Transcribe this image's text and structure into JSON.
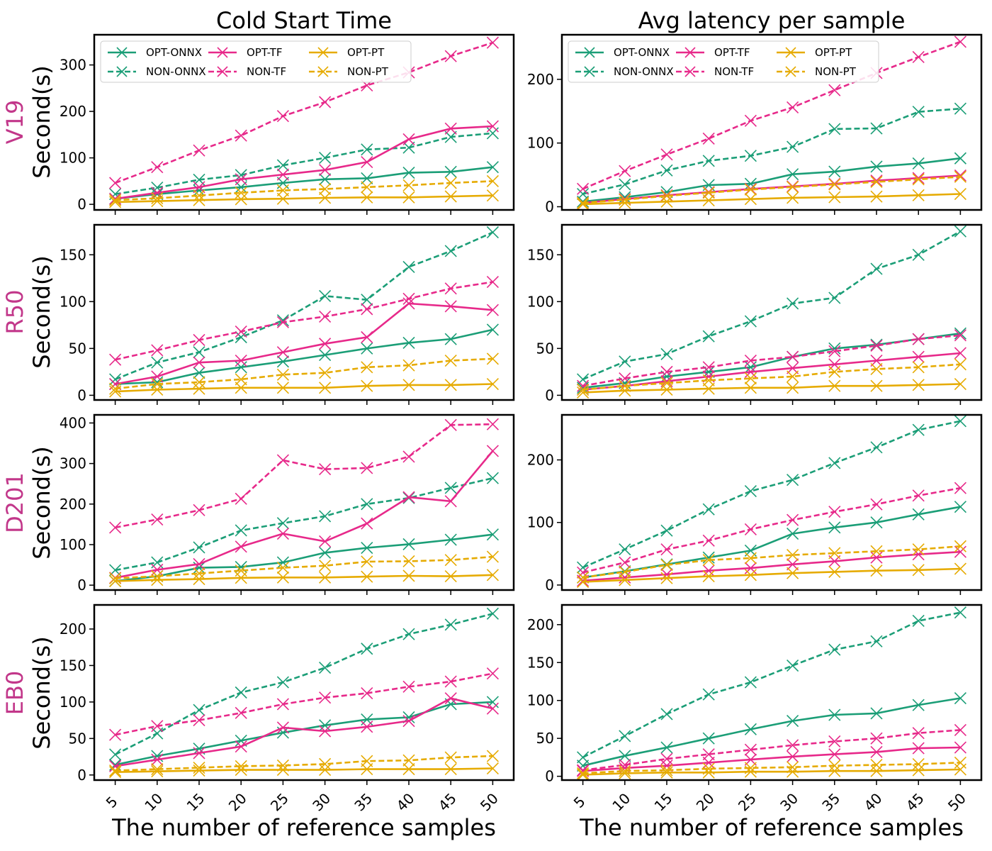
{
  "figure": {
    "col_titles": [
      "Cold Start Time",
      "Avg latency per sample"
    ],
    "row_labels": [
      "V19",
      "R50",
      "D201",
      "EB0"
    ],
    "ylabel": "Second(s)",
    "xlabel": "The number of reference samples",
    "series_styles": [
      {
        "name": "OPT-ONNX",
        "color": "#1b9e77",
        "dashed": false
      },
      {
        "name": "NON-ONNX",
        "color": "#1b9e77",
        "dashed": true
      },
      {
        "name": "OPT-TF",
        "color": "#e7298a",
        "dashed": false
      },
      {
        "name": "NON-TF",
        "color": "#e7298a",
        "dashed": true
      },
      {
        "name": "OPT-PT",
        "color": "#e6ab02",
        "dashed": false
      },
      {
        "name": "NON-PT",
        "color": "#e6ab02",
        "dashed": true
      }
    ]
  },
  "chart_data": [
    {
      "type": "line",
      "title": "Cold Start Time",
      "row": "V19",
      "xlabel": "The number of reference samples",
      "ylabel": "Second(s)",
      "x": [
        5,
        10,
        15,
        20,
        25,
        30,
        35,
        40,
        45,
        50
      ],
      "ylim": [
        -12,
        365
      ],
      "yticks": [
        0,
        100,
        200,
        300
      ],
      "legend": "top-left",
      "series": [
        {
          "name": "OPT-ONNX",
          "values": [
            12,
            22,
            30,
            37,
            46,
            54,
            56,
            68,
            70,
            80
          ]
        },
        {
          "name": "NON-ONNX",
          "values": [
            22,
            36,
            53,
            63,
            84,
            100,
            118,
            122,
            145,
            153
          ]
        },
        {
          "name": "OPT-TF",
          "values": [
            12,
            25,
            37,
            54,
            64,
            74,
            91,
            140,
            163,
            168
          ]
        },
        {
          "name": "NON-TF",
          "values": [
            46,
            80,
            116,
            148,
            190,
            220,
            256,
            284,
            319,
            348
          ]
        },
        {
          "name": "OPT-PT",
          "values": [
            5,
            7,
            9,
            11,
            12,
            14,
            15,
            15,
            17,
            19
          ]
        },
        {
          "name": "NON-PT",
          "values": [
            9,
            13,
            19,
            25,
            30,
            33,
            37,
            41,
            46,
            50
          ]
        }
      ]
    },
    {
      "type": "line",
      "title": "Avg latency per sample",
      "row": "V19",
      "xlabel": "The number of reference samples",
      "ylabel": "",
      "x": [
        5,
        10,
        15,
        20,
        25,
        30,
        35,
        40,
        45,
        50
      ],
      "ylim": [
        -5,
        270
      ],
      "yticks": [
        0,
        100,
        200
      ],
      "legend": "top-left",
      "series": [
        {
          "name": "OPT-ONNX",
          "values": [
            8,
            15,
            23,
            34,
            36,
            51,
            55,
            63,
            68,
            76
          ]
        },
        {
          "name": "NON-ONNX",
          "values": [
            20,
            35,
            57,
            72,
            80,
            94,
            122,
            123,
            149,
            154
          ]
        },
        {
          "name": "OPT-TF",
          "values": [
            6,
            12,
            18,
            23,
            28,
            32,
            36,
            41,
            45,
            49
          ]
        },
        {
          "name": "NON-TF",
          "values": [
            28,
            56,
            82,
            107,
            135,
            156,
            183,
            210,
            235,
            259
          ]
        },
        {
          "name": "OPT-PT",
          "values": [
            4,
            6,
            8,
            10,
            12,
            14,
            15,
            16,
            18,
            20
          ]
        },
        {
          "name": "NON-PT",
          "values": [
            6,
            11,
            17,
            22,
            27,
            31,
            35,
            39,
            43,
            47
          ]
        }
      ]
    },
    {
      "type": "line",
      "title": "",
      "row": "R50",
      "xlabel": "The number of reference samples",
      "ylabel": "Second(s)",
      "x": [
        5,
        10,
        15,
        20,
        25,
        30,
        35,
        40,
        45,
        50
      ],
      "ylim": [
        -5,
        182
      ],
      "yticks": [
        0,
        50,
        100,
        150
      ],
      "series": [
        {
          "name": "OPT-ONNX",
          "values": [
            12,
            14,
            24,
            30,
            36,
            43,
            50,
            56,
            60,
            70
          ]
        },
        {
          "name": "NON-ONNX",
          "values": [
            17,
            35,
            46,
            62,
            80,
            106,
            102,
            137,
            154,
            174
          ]
        },
        {
          "name": "OPT-TF",
          "values": [
            12,
            20,
            35,
            37,
            46,
            55,
            62,
            98,
            95,
            91
          ]
        },
        {
          "name": "NON-TF",
          "values": [
            38,
            48,
            59,
            68,
            78,
            84,
            92,
            103,
            114,
            121
          ]
        },
        {
          "name": "OPT-PT",
          "values": [
            4,
            6,
            7,
            8,
            8,
            8,
            10,
            11,
            11,
            12
          ]
        },
        {
          "name": "NON-PT",
          "values": [
            7,
            12,
            14,
            17,
            22,
            24,
            30,
            32,
            37,
            39
          ]
        }
      ]
    },
    {
      "type": "line",
      "title": "",
      "row": "R50",
      "xlabel": "The number of reference samples",
      "ylabel": "",
      "x": [
        5,
        10,
        15,
        20,
        25,
        30,
        35,
        40,
        45,
        50
      ],
      "ylim": [
        -5,
        182
      ],
      "yticks": [
        0,
        50,
        100,
        150
      ],
      "series": [
        {
          "name": "OPT-ONNX",
          "values": [
            8,
            13,
            20,
            25,
            30,
            41,
            50,
            54,
            60,
            66
          ]
        },
        {
          "name": "NON-ONNX",
          "values": [
            17,
            36,
            44,
            63,
            79,
            98,
            104,
            135,
            150,
            175
          ]
        },
        {
          "name": "OPT-TF",
          "values": [
            6,
            10,
            15,
            20,
            25,
            29,
            33,
            37,
            41,
            45
          ]
        },
        {
          "name": "NON-TF",
          "values": [
            10,
            18,
            25,
            30,
            37,
            41,
            47,
            53,
            60,
            64
          ]
        },
        {
          "name": "OPT-PT",
          "values": [
            3,
            5,
            6,
            7,
            8,
            8,
            10,
            10,
            11,
            12
          ]
        },
        {
          "name": "NON-PT",
          "values": [
            6,
            10,
            13,
            16,
            18,
            20,
            25,
            28,
            30,
            33
          ]
        }
      ]
    },
    {
      "type": "line",
      "title": "",
      "row": "D201",
      "xlabel": "The number of reference samples",
      "ylabel": "Second(s)",
      "x": [
        5,
        10,
        15,
        20,
        25,
        30,
        35,
        40,
        45,
        50
      ],
      "ylim": [
        -12,
        420
      ],
      "yticks": [
        0,
        100,
        200,
        300,
        400
      ],
      "series": [
        {
          "name": "OPT-ONNX",
          "values": [
            10,
            22,
            43,
            45,
            56,
            80,
            92,
            101,
            112,
            125
          ]
        },
        {
          "name": "NON-ONNX",
          "values": [
            37,
            56,
            93,
            135,
            153,
            170,
            200,
            215,
            240,
            264
          ]
        },
        {
          "name": "OPT-TF",
          "values": [
            18,
            38,
            52,
            95,
            127,
            108,
            152,
            217,
            207,
            331
          ]
        },
        {
          "name": "NON-TF",
          "values": [
            142,
            162,
            185,
            213,
            308,
            286,
            289,
            317,
            395,
            397
          ]
        },
        {
          "name": "OPT-PT",
          "values": [
            10,
            13,
            15,
            18,
            19,
            19,
            21,
            23,
            22,
            25
          ]
        },
        {
          "name": "NON-PT",
          "values": [
            17,
            22,
            29,
            36,
            43,
            48,
            58,
            59,
            62,
            70
          ]
        }
      ]
    },
    {
      "type": "line",
      "title": "",
      "row": "D201",
      "xlabel": "The number of reference samples",
      "ylabel": "",
      "x": [
        5,
        10,
        15,
        20,
        25,
        30,
        35,
        40,
        45,
        50
      ],
      "ylim": [
        -8,
        272
      ],
      "yticks": [
        0,
        100,
        200
      ],
      "series": [
        {
          "name": "OPT-ONNX",
          "values": [
            12,
            22,
            33,
            44,
            55,
            82,
            92,
            100,
            113,
            125
          ]
        },
        {
          "name": "NON-ONNX",
          "values": [
            28,
            57,
            87,
            121,
            150,
            168,
            195,
            220,
            248,
            262
          ]
        },
        {
          "name": "OPT-TF",
          "values": [
            7,
            12,
            17,
            23,
            27,
            33,
            38,
            44,
            49,
            53
          ]
        },
        {
          "name": "NON-TF",
          "values": [
            20,
            36,
            57,
            71,
            89,
            104,
            117,
            129,
            143,
            155
          ]
        },
        {
          "name": "OPT-PT",
          "values": [
            5,
            8,
            11,
            14,
            16,
            19,
            21,
            23,
            24,
            26
          ]
        },
        {
          "name": "NON-PT",
          "values": [
            12,
            21,
            32,
            40,
            43,
            48,
            51,
            54,
            57,
            62
          ]
        }
      ]
    },
    {
      "type": "line",
      "title": "",
      "row": "EB0",
      "xlabel": "The number of reference samples",
      "ylabel": "Second(s)",
      "x": [
        5,
        10,
        15,
        20,
        25,
        30,
        35,
        40,
        45,
        50
      ],
      "ylim": [
        -7,
        233
      ],
      "yticks": [
        0,
        50,
        100,
        150,
        200
      ],
      "series": [
        {
          "name": "OPT-ONNX",
          "values": [
            14,
            26,
            36,
            47,
            58,
            68,
            76,
            79,
            97,
            100
          ]
        },
        {
          "name": "NON-ONNX",
          "values": [
            28,
            57,
            89,
            113,
            127,
            147,
            173,
            193,
            206,
            221
          ]
        },
        {
          "name": "OPT-TF",
          "values": [
            12,
            21,
            30,
            39,
            65,
            60,
            66,
            74,
            105,
            91
          ]
        },
        {
          "name": "NON-TF",
          "values": [
            55,
            67,
            75,
            85,
            97,
            106,
            112,
            121,
            128,
            139
          ]
        },
        {
          "name": "OPT-PT",
          "values": [
            4,
            5,
            6,
            7,
            7,
            7,
            8,
            8,
            8,
            9
          ]
        },
        {
          "name": "NON-PT",
          "values": [
            6,
            8,
            10,
            12,
            13,
            15,
            19,
            20,
            24,
            26
          ]
        }
      ]
    },
    {
      "type": "line",
      "title": "",
      "row": "EB0",
      "xlabel": "The number of reference samples",
      "ylabel": "",
      "x": [
        5,
        10,
        15,
        20,
        25,
        30,
        35,
        40,
        45,
        50
      ],
      "ylim": [
        -5,
        226
      ],
      "yticks": [
        0,
        50,
        100,
        150,
        200
      ],
      "series": [
        {
          "name": "OPT-ONNX",
          "values": [
            14,
            27,
            38,
            50,
            62,
            73,
            81,
            83,
            94,
            103
          ]
        },
        {
          "name": "NON-ONNX",
          "values": [
            25,
            53,
            82,
            108,
            124,
            146,
            167,
            178,
            205,
            216
          ]
        },
        {
          "name": "OPT-TF",
          "values": [
            7,
            11,
            14,
            18,
            22,
            26,
            29,
            32,
            37,
            38
          ]
        },
        {
          "name": "NON-TF",
          "values": [
            8,
            15,
            23,
            29,
            35,
            41,
            46,
            50,
            57,
            61
          ]
        },
        {
          "name": "OPT-PT",
          "values": [
            2,
            4,
            5,
            5,
            6,
            6,
            7,
            7,
            8,
            9
          ]
        },
        {
          "name": "NON-PT",
          "values": [
            4,
            7,
            8,
            10,
            11,
            12,
            14,
            15,
            16,
            18
          ]
        }
      ]
    }
  ]
}
